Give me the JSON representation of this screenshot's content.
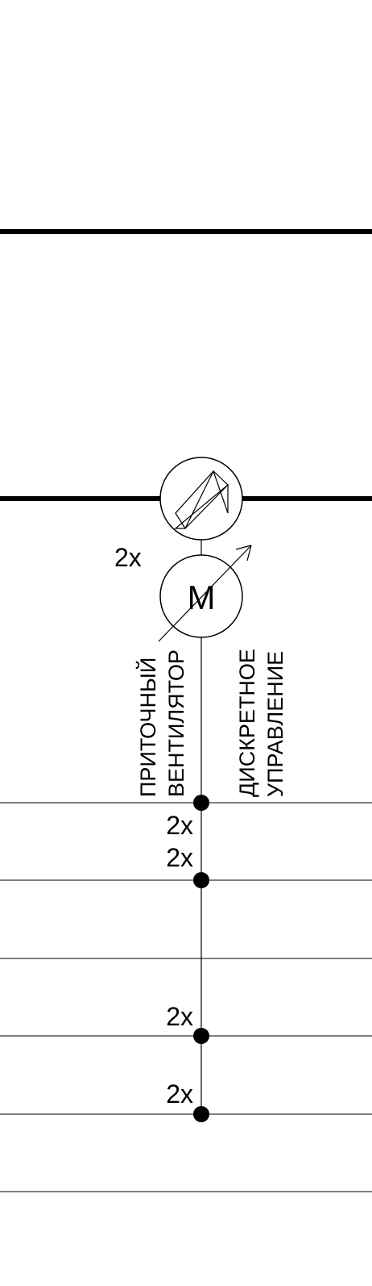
{
  "diagram": {
    "motor_symbol": "M",
    "motor_count": "2x",
    "supply_fan_label": [
      "ПРИТОЧНЫЙ",
      "ВЕНТИЛЯТОР"
    ],
    "control_label": [
      "ДИСКРЕТНОЕ",
      "УПРАВЛЕНИЕ"
    ],
    "connection_counts": [
      "2x",
      "2x",
      "2x",
      "2x"
    ]
  },
  "colors": {
    "line": "#000000",
    "background": "#ffffff"
  },
  "icons": [
    "damper-icon",
    "motor-icon",
    "adjustable-arrow-icon"
  ]
}
